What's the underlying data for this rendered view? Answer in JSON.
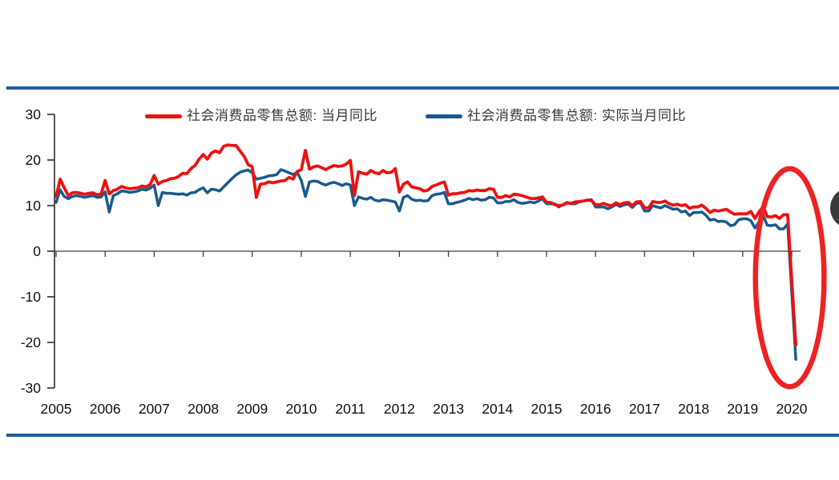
{
  "colors": {
    "nominal_line": "#ed1111",
    "real_line": "#1a5a8c",
    "divider_rule": "#1f5c99",
    "highlight_ellipse": "#ee2222",
    "side_button": "#3b3b3d",
    "axis_text": "#111111",
    "legend_text": "#3a3a3a",
    "zero_line": "#3c3c3c",
    "y_axis": "#2b2b2b"
  },
  "chart_data": {
    "type": "line",
    "title": "",
    "legend_position": "top",
    "grid": false,
    "x_ticks": [
      2005,
      2006,
      2007,
      2008,
      2009,
      2010,
      2011,
      2012,
      2013,
      2014,
      2015,
      2016,
      2017,
      2018,
      2019,
      2020
    ],
    "y_ticks": [
      30,
      20,
      10,
      0,
      -10,
      -20,
      -30
    ],
    "ylim": [
      -30,
      30
    ],
    "xlabel": "",
    "ylabel": "",
    "start_year": 2005,
    "frequency": "monthly",
    "series": [
      {
        "name": "社会消费品零售总额: 当月同比",
        "color": "#ed1111",
        "values": [
          12.0,
          15.8,
          13.9,
          12.2,
          12.8,
          12.9,
          12.7,
          12.5,
          12.7,
          12.8,
          12.4,
          12.5,
          15.5,
          12.6,
          13.3,
          13.6,
          14.2,
          13.9,
          13.7,
          13.8,
          13.9,
          14.3,
          14.1,
          14.6,
          16.6,
          14.7,
          15.3,
          15.5,
          15.9,
          16.0,
          16.4,
          17.1,
          17.0,
          18.1,
          18.8,
          20.2,
          21.2,
          20.2,
          21.5,
          22.0,
          21.6,
          23.0,
          23.3,
          23.2,
          23.2,
          22.0,
          20.8,
          19.0,
          18.5,
          11.8,
          14.7,
          14.8,
          15.2,
          15.0,
          15.2,
          15.4,
          15.5,
          16.2,
          15.8,
          17.5,
          17.9,
          22.1,
          18.0,
          18.5,
          18.7,
          18.3,
          17.9,
          18.4,
          18.8,
          18.6,
          18.7,
          19.1,
          19.9,
          12.2,
          17.4,
          17.1,
          16.9,
          17.7,
          17.2,
          17.0,
          17.7,
          17.2,
          17.3,
          18.1,
          13.0,
          14.7,
          15.2,
          14.1,
          13.9,
          13.7,
          13.2,
          13.4,
          14.2,
          14.5,
          14.9,
          15.2,
          12.3,
          12.6,
          12.6,
          12.8,
          12.9,
          13.3,
          13.2,
          13.4,
          13.3,
          13.3,
          13.7,
          13.6,
          11.8,
          11.8,
          12.2,
          11.9,
          12.5,
          12.4,
          12.2,
          11.9,
          11.6,
          11.5,
          11.7,
          11.9,
          10.7,
          10.7,
          10.2,
          10.0,
          10.1,
          10.6,
          10.5,
          10.8,
          10.9,
          11.0,
          11.2,
          11.1,
          10.2,
          10.2,
          10.5,
          10.1,
          10.0,
          10.6,
          10.2,
          10.6,
          10.7,
          10.0,
          10.8,
          10.9,
          9.5,
          9.5,
          10.9,
          10.7,
          10.7,
          11.0,
          10.4,
          10.1,
          10.3,
          10.0,
          10.2,
          9.4,
          9.7,
          9.7,
          10.1,
          9.4,
          8.5,
          9.0,
          8.8,
          9.0,
          9.2,
          8.6,
          8.1,
          8.2,
          8.2,
          8.2,
          8.7,
          7.2,
          8.6,
          9.8,
          7.6,
          7.5,
          7.8,
          7.2,
          8.0,
          8.0
        ],
        "final_point": {
          "year": 2020.083,
          "value": -20.5
        }
      },
      {
        "name": "社会消费品零售总额: 实际当月同比",
        "color": "#1a5a8c",
        "values": [
          10.7,
          13.5,
          12.0,
          11.5,
          12.0,
          12.2,
          12.0,
          11.8,
          12.0,
          12.2,
          11.8,
          11.9,
          13.0,
          8.6,
          12.2,
          12.6,
          13.2,
          13.1,
          12.9,
          13.0,
          13.2,
          13.6,
          13.4,
          13.8,
          14.5,
          10.0,
          12.9,
          12.7,
          12.7,
          12.6,
          12.5,
          12.6,
          12.3,
          12.8,
          12.9,
          13.5,
          13.9,
          12.8,
          13.6,
          13.5,
          13.2,
          14.1,
          15.0,
          15.9,
          16.7,
          17.3,
          17.6,
          17.8,
          17.2,
          15.8,
          16.0,
          16.2,
          16.5,
          16.6,
          16.8,
          17.9,
          17.6,
          17.2,
          16.8,
          17.3,
          15.5,
          12.0,
          15.2,
          15.4,
          15.3,
          14.8,
          14.5,
          14.9,
          15.1,
          14.8,
          14.4,
          14.8,
          14.5,
          10.0,
          11.9,
          11.6,
          11.4,
          11.8,
          11.2,
          11.0,
          11.3,
          11.2,
          11.0,
          10.8,
          8.8,
          11.8,
          12.2,
          11.4,
          11.1,
          11.2,
          11.0,
          11.1,
          12.2,
          12.5,
          12.6,
          12.9,
          10.4,
          10.4,
          10.7,
          10.9,
          11.2,
          11.6,
          11.3,
          11.5,
          11.2,
          11.3,
          11.8,
          11.7,
          10.6,
          10.6,
          10.9,
          10.9,
          11.3,
          10.7,
          10.5,
          10.6,
          10.8,
          10.6,
          11.0,
          11.5,
          10.4,
          10.4,
          10.4,
          9.7,
          10.2,
          10.7,
          10.4,
          10.4,
          10.8,
          11.0,
          11.2,
          11.3,
          9.7,
          9.7,
          9.7,
          9.3,
          9.7,
          10.3,
          9.8,
          10.2,
          10.3,
          9.6,
          10.5,
          10.6,
          8.8,
          8.8,
          10.0,
          9.7,
          9.5,
          10.0,
          9.6,
          9.2,
          9.3,
          8.6,
          8.8,
          7.8,
          8.5,
          8.5,
          8.6,
          7.9,
          6.8,
          7.0,
          6.5,
          6.6,
          6.4,
          5.6,
          5.8,
          6.9,
          7.1,
          7.1,
          6.7,
          5.1,
          6.4,
          7.9,
          5.7,
          5.6,
          5.8,
          4.9,
          4.9,
          6.0
        ],
        "final_point": {
          "year": 2020.083,
          "value": -23.7
        }
      }
    ],
    "annotations": [
      {
        "type": "ellipse",
        "cx_year": 2019.96,
        "cy_value": -5.8,
        "rx_years": 0.7,
        "ry_values": 23.9,
        "color": "#ee2222",
        "purpose": "highlight 2020 collapse"
      }
    ]
  }
}
